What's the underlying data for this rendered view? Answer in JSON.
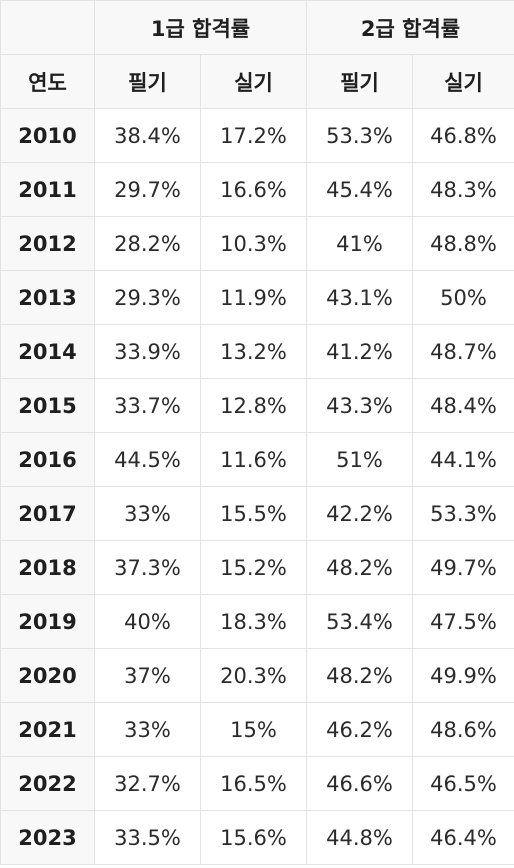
{
  "header": {
    "group_1": "1급 합격률",
    "group_2": "2급 합격률",
    "year_label": "연도",
    "sub_written_1": "필기",
    "sub_practical_1": "실기",
    "sub_written_2": "필기",
    "sub_practical_2": "실기"
  },
  "rows": [
    {
      "year": "2010",
      "g1_written": "38.4%",
      "g1_practical": "17.2%",
      "g2_written": "53.3%",
      "g2_practical": "46.8%"
    },
    {
      "year": "2011",
      "g1_written": "29.7%",
      "g1_practical": "16.6%",
      "g2_written": "45.4%",
      "g2_practical": "48.3%"
    },
    {
      "year": "2012",
      "g1_written": "28.2%",
      "g1_practical": "10.3%",
      "g2_written": "41%",
      "g2_practical": "48.8%"
    },
    {
      "year": "2013",
      "g1_written": "29.3%",
      "g1_practical": "11.9%",
      "g2_written": "43.1%",
      "g2_practical": "50%"
    },
    {
      "year": "2014",
      "g1_written": "33.9%",
      "g1_practical": "13.2%",
      "g2_written": "41.2%",
      "g2_practical": "48.7%"
    },
    {
      "year": "2015",
      "g1_written": "33.7%",
      "g1_practical": "12.8%",
      "g2_written": "43.3%",
      "g2_practical": "48.4%"
    },
    {
      "year": "2016",
      "g1_written": "44.5%",
      "g1_practical": "11.6%",
      "g2_written": "51%",
      "g2_practical": "44.1%"
    },
    {
      "year": "2017",
      "g1_written": "33%",
      "g1_practical": "15.5%",
      "g2_written": "42.2%",
      "g2_practical": "53.3%"
    },
    {
      "year": "2018",
      "g1_written": "37.3%",
      "g1_practical": "15.2%",
      "g2_written": "48.2%",
      "g2_practical": "49.7%"
    },
    {
      "year": "2019",
      "g1_written": "40%",
      "g1_practical": "18.3%",
      "g2_written": "53.4%",
      "g2_practical": "47.5%"
    },
    {
      "year": "2020",
      "g1_written": "37%",
      "g1_practical": "20.3%",
      "g2_written": "48.2%",
      "g2_practical": "49.9%"
    },
    {
      "year": "2021",
      "g1_written": "33%",
      "g1_practical": "15%",
      "g2_written": "46.2%",
      "g2_practical": "48.6%"
    },
    {
      "year": "2022",
      "g1_written": "32.7%",
      "g1_practical": "16.5%",
      "g2_written": "46.6%",
      "g2_practical": "46.5%"
    },
    {
      "year": "2023",
      "g1_written": "33.5%",
      "g1_practical": "15.6%",
      "g2_written": "44.8%",
      "g2_practical": "46.4%"
    }
  ]
}
